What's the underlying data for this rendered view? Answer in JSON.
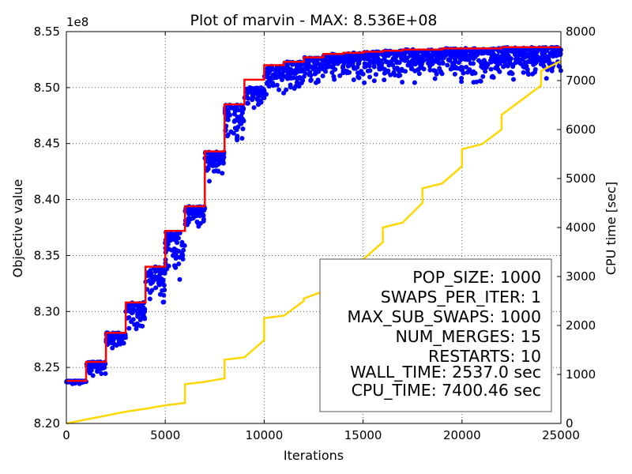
{
  "chart_data": {
    "type": "scatter",
    "title": "Plot of marvin - MAX: 8.536E+08",
    "xlabel": "Iterations",
    "ylabel": "Objective value",
    "y2label": "CPU time [sec]",
    "offset_label": "1e8",
    "xlim": [
      0,
      25000
    ],
    "ylim": [
      8.2,
      8.55
    ],
    "y2lim": [
      0,
      8000
    ],
    "grid": true,
    "x_ticks": [
      0,
      5000,
      10000,
      15000,
      20000,
      25000
    ],
    "x_tick_labels": [
      "0",
      "5000",
      "10000",
      "15000",
      "20000",
      "25000"
    ],
    "y_ticks": [
      8.2,
      8.25,
      8.3,
      8.35,
      8.4,
      8.45,
      8.5,
      8.55
    ],
    "y_tick_labels": [
      "8.20",
      "8.25",
      "8.30",
      "8.35",
      "8.40",
      "8.45",
      "8.50",
      "8.55"
    ],
    "y2_ticks": [
      0,
      1000,
      2000,
      3000,
      4000,
      5000,
      6000,
      7000,
      8000
    ],
    "y2_tick_labels": [
      "0",
      "1000",
      "2000",
      "3000",
      "4000",
      "5000",
      "6000",
      "7000",
      "8000"
    ],
    "colors": {
      "population": "#0000ff",
      "best": "#ff0000",
      "cpu_time": "#ffd700"
    },
    "series": [
      {
        "kind": "scatter",
        "axis": "left",
        "color": "#0000ff",
        "bands": [
          {
            "x": [
              0,
              1000
            ],
            "y_min": 8.235,
            "y_max": 8.238
          },
          {
            "x": [
              1000,
              2000
            ],
            "y_min": 8.24,
            "y_max": 8.255
          },
          {
            "x": [
              2000,
              3000
            ],
            "y_min": 8.265,
            "y_max": 8.281
          },
          {
            "x": [
              3000,
              4000
            ],
            "y_min": 8.28,
            "y_max": 8.308
          },
          {
            "x": [
              4000,
              5000
            ],
            "y_min": 8.3,
            "y_max": 8.34
          },
          {
            "x": [
              5000,
              6000
            ],
            "y_min": 8.325,
            "y_max": 8.372
          },
          {
            "x": [
              6000,
              7000
            ],
            "y_min": 8.37,
            "y_max": 8.394
          },
          {
            "x": [
              7000,
              8000
            ],
            "y_min": 8.413,
            "y_max": 8.443
          },
          {
            "x": [
              8000,
              9000
            ],
            "y_min": 8.448,
            "y_max": 8.485
          },
          {
            "x": [
              9000,
              10000
            ],
            "y_min": 8.48,
            "y_max": 8.5
          },
          {
            "x": [
              10000,
              11000
            ],
            "y_min": 8.49,
            "y_max": 8.52
          },
          {
            "x": [
              11000,
              12000
            ],
            "y_min": 8.495,
            "y_max": 8.523
          },
          {
            "x": [
              12000,
              13000
            ],
            "y_min": 8.497,
            "y_max": 8.527
          },
          {
            "x": [
              13000,
              14000
            ],
            "y_min": 8.5,
            "y_max": 8.53
          },
          {
            "x": [
              14000,
              15000
            ],
            "y_min": 8.5,
            "y_max": 8.531
          },
          {
            "x": [
              15000,
              16000
            ],
            "y_min": 8.5,
            "y_max": 8.532
          },
          {
            "x": [
              16000,
              17000
            ],
            "y_min": 8.5,
            "y_max": 8.533
          },
          {
            "x": [
              17000,
              18000
            ],
            "y_min": 8.5,
            "y_max": 8.534
          },
          {
            "x": [
              18000,
              19000
            ],
            "y_min": 8.5,
            "y_max": 8.534
          },
          {
            "x": [
              19000,
              20000
            ],
            "y_min": 8.5,
            "y_max": 8.535
          },
          {
            "x": [
              20000,
              21000
            ],
            "y_min": 8.5,
            "y_max": 8.535
          },
          {
            "x": [
              21000,
              22000
            ],
            "y_min": 8.502,
            "y_max": 8.535
          },
          {
            "x": [
              22000,
              23000
            ],
            "y_min": 8.502,
            "y_max": 8.536
          },
          {
            "x": [
              23000,
              24000
            ],
            "y_min": 8.502,
            "y_max": 8.536
          },
          {
            "x": [
              24000,
              25000
            ],
            "y_min": 8.503,
            "y_max": 8.536
          }
        ]
      },
      {
        "kind": "step",
        "axis": "left",
        "color": "#ff0000",
        "x": [
          0,
          1000,
          2000,
          3000,
          4000,
          5000,
          6000,
          7000,
          8000,
          9000,
          10000,
          11000,
          12000,
          13000,
          14000,
          15000,
          16000,
          17000,
          18000,
          19000,
          20000,
          21000,
          22000,
          23000,
          24000,
          25000
        ],
        "y": [
          8.238,
          8.255,
          8.281,
          8.308,
          8.34,
          8.372,
          8.394,
          8.443,
          8.485,
          8.507,
          8.52,
          8.523,
          8.527,
          8.53,
          8.531,
          8.532,
          8.533,
          8.534,
          8.534,
          8.535,
          8.535,
          8.535,
          8.536,
          8.536,
          8.536,
          8.536
        ]
      },
      {
        "kind": "line",
        "axis": "right",
        "color": "#ffd700",
        "x": [
          0,
          1000,
          2000,
          3000,
          4000,
          5000,
          5999,
          6000,
          7000,
          7999,
          8000,
          9000,
          9999,
          10000,
          11000,
          11999,
          12000,
          13000,
          13999,
          14000,
          15000,
          15999,
          16000,
          17000,
          17999,
          18000,
          19000,
          19999,
          20000,
          21000,
          21999,
          22000,
          23000,
          23999,
          24000,
          25000
        ],
        "y": [
          0,
          80,
          160,
          240,
          300,
          370,
          420,
          800,
          850,
          920,
          1300,
          1350,
          1700,
          2150,
          2200,
          2500,
          2550,
          2700,
          3000,
          3300,
          3350,
          3700,
          4000,
          4100,
          4500,
          4800,
          4900,
          5250,
          5600,
          5700,
          6000,
          6300,
          6600,
          6900,
          7200,
          7400
        ]
      }
    ],
    "info_box": {
      "position": "bottom-right",
      "lines": [
        "POP_SIZE: 1000",
        "SWAPS_PER_ITER: 1",
        "MAX_SUB_SWAPS: 1000",
        "NUM_MERGES: 15",
        "RESTARTS: 10",
        "WALL_TIME: 2537.0 sec",
        "CPU_TIME: 7400.46 sec"
      ]
    }
  }
}
